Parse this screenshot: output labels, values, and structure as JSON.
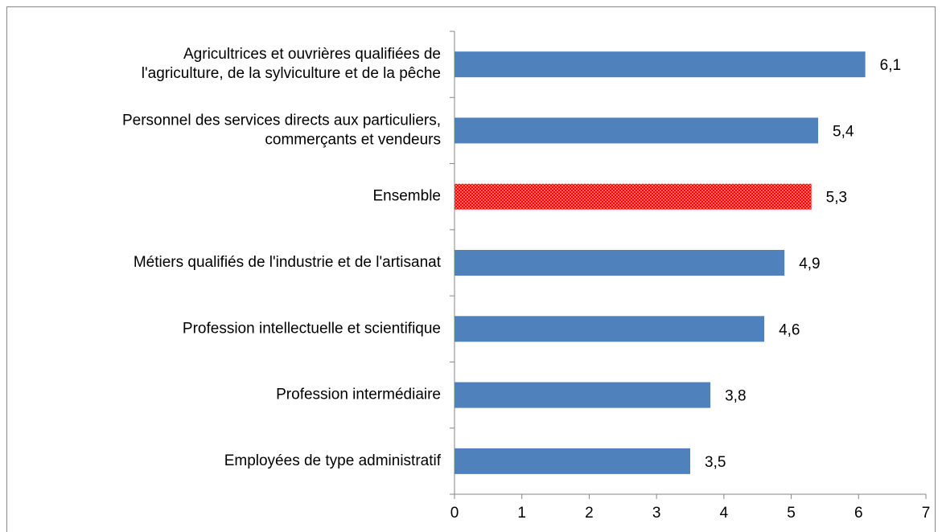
{
  "chart_data": {
    "type": "barh",
    "categories": [
      [
        "Agricultrices et ouvrières qualifiées de",
        "l'agriculture, de la sylviculture et de la pêche"
      ],
      [
        "Personnel des services directs aux particuliers,",
        "commerçants et vendeurs"
      ],
      [
        "Ensemble"
      ],
      [
        "Métiers qualifiés de l'industrie et de l'artisanat"
      ],
      [
        "Profession intellectuelle et scientifique"
      ],
      [
        "Profession intermédiaire"
      ],
      [
        "Employées de type administratif"
      ]
    ],
    "values": [
      6.1,
      5.4,
      5.3,
      4.9,
      4.6,
      3.8,
      3.5
    ],
    "value_labels": [
      "6,1",
      "5,4",
      "5,3",
      "4,9",
      "4,6",
      "3,8",
      "3,5"
    ],
    "colors": [
      "#4f81bd",
      "#4f81bd",
      "#ff0000",
      "#4f81bd",
      "#4f81bd",
      "#4f81bd",
      "#4f81bd"
    ],
    "patterns": [
      null,
      null,
      "dotted",
      null,
      null,
      null,
      null
    ],
    "xlim": [
      0,
      7
    ],
    "xticks": [
      0,
      1,
      2,
      3,
      4,
      5,
      6,
      7
    ]
  }
}
